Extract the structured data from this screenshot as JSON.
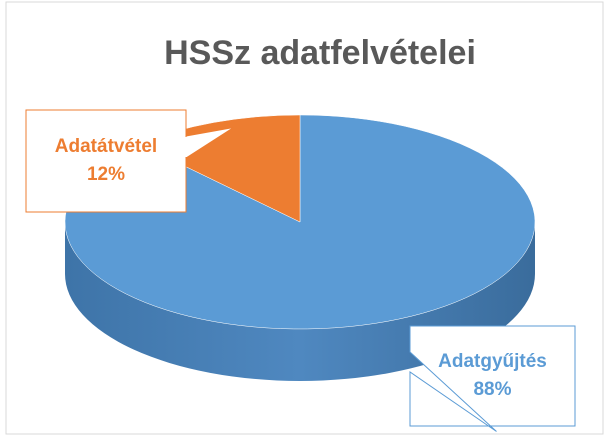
{
  "chart_data": {
    "type": "pie",
    "title": "HSSz adatfelvételei",
    "categories": [
      "Adatgyűjtés",
      "Adatátvétel"
    ],
    "values": [
      88,
      12
    ],
    "value_labels": [
      "88%",
      "12%"
    ],
    "colors": [
      "#5b9bd5",
      "#ed7d31"
    ]
  }
}
